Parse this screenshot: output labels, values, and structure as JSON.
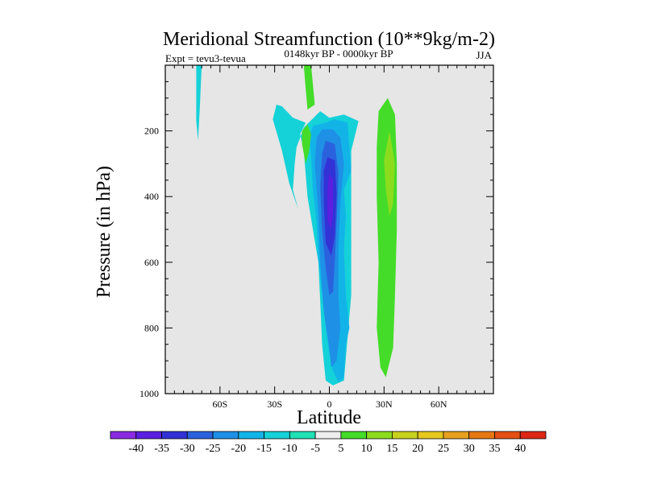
{
  "colors": {
    "background": "#e6e6e6",
    "axis": "#000000"
  },
  "chart_data": {
    "type": "contour",
    "title": "Meridional Streamfunction (10**9kg/m-2)",
    "subtitle": "0148kyr BP - 0000kyr BP",
    "left_label": "Expt = tevu3-tevua",
    "right_label": "JJA",
    "xlabel": "Latitude",
    "ylabel": "Pressure (in hPa)",
    "xlim": [
      -90,
      90
    ],
    "ylim": [
      1000,
      0
    ],
    "xticks": [
      {
        "value": -60,
        "label": "60S"
      },
      {
        "value": -30,
        "label": "30S"
      },
      {
        "value": 0,
        "label": "0"
      },
      {
        "value": 30,
        "label": "30N"
      },
      {
        "value": 60,
        "label": "60N"
      }
    ],
    "yticks": [
      {
        "value": 200,
        "label": "200"
      },
      {
        "value": 400,
        "label": "400"
      },
      {
        "value": 600,
        "label": "600"
      },
      {
        "value": 800,
        "label": "800"
      },
      {
        "value": 1000,
        "label": "1000"
      }
    ],
    "colorbar": {
      "labels": [
        "-40",
        "-35",
        "-30",
        "-25",
        "-20",
        "-15",
        "-10",
        "-5",
        "5",
        "10",
        "15",
        "20",
        "25",
        "30",
        "35",
        "40"
      ],
      "colors": [
        "#8a2be2",
        "#5a1fe0",
        "#3232d6",
        "#2a62de",
        "#1e90e6",
        "#12b4e8",
        "#14d2d8",
        "#20e0b4",
        "#eeeeee",
        "#44dc28",
        "#8cdc1e",
        "#c8d21e",
        "#e6c81e",
        "#e6a01e",
        "#e67814",
        "#e65014",
        "#dc2814"
      ]
    },
    "regions": [
      {
        "name": "-10 band (tropical south cell)",
        "level": "-10",
        "color": "#14d2d8",
        "points": [
          [
            -29,
            120
          ],
          [
            -26,
            125
          ],
          [
            -20,
            160
          ],
          [
            -13,
            175
          ],
          [
            -16,
            210
          ],
          [
            -14,
            260
          ],
          [
            -12,
            400
          ],
          [
            -9,
            500
          ],
          [
            -6,
            600
          ],
          [
            -5,
            720
          ],
          [
            -4,
            850
          ],
          [
            -2,
            960
          ],
          [
            2,
            975
          ],
          [
            8,
            960
          ],
          [
            12,
            700
          ],
          [
            12,
            260
          ],
          [
            16,
            170
          ],
          [
            8,
            150
          ],
          [
            0,
            160
          ],
          [
            -5,
            140
          ],
          [
            -14,
            190
          ],
          [
            -18,
            250
          ],
          [
            -19,
            300
          ],
          [
            -20,
            380
          ],
          [
            -17,
            440
          ],
          [
            -22,
            360
          ],
          [
            -26,
            260
          ],
          [
            -31,
            165
          ]
        ]
      },
      {
        "name": "-10 band high latitude",
        "level": "-10",
        "color": "#14d2d8",
        "points": [
          [
            -73,
            0
          ],
          [
            -70,
            0
          ],
          [
            -71,
            120
          ],
          [
            -72,
            230
          ],
          [
            -73,
            170
          ]
        ]
      },
      {
        "name": "-15 contour",
        "level": "-15",
        "color": "#12b4e8",
        "points": [
          [
            -9,
            185
          ],
          [
            -2,
            175
          ],
          [
            3,
            165
          ],
          [
            10,
            175
          ],
          [
            12,
            320
          ],
          [
            8,
            380
          ],
          [
            9,
            460
          ],
          [
            8,
            560
          ],
          [
            9,
            700
          ],
          [
            11,
            800
          ],
          [
            9,
            850
          ],
          [
            8,
            950
          ],
          [
            5,
            965
          ],
          [
            2,
            930
          ],
          [
            0,
            880
          ],
          [
            -2,
            800
          ],
          [
            -4,
            700
          ],
          [
            -6,
            590
          ],
          [
            -7,
            480
          ],
          [
            -9,
            380
          ],
          [
            -10,
            280
          ],
          [
            -11,
            215
          ]
        ]
      },
      {
        "name": "-20 contour",
        "level": "-20",
        "color": "#1e90e6",
        "points": [
          [
            -4,
            195
          ],
          [
            2,
            195
          ],
          [
            6,
            220
          ],
          [
            8,
            300
          ],
          [
            6,
            420
          ],
          [
            5,
            560
          ],
          [
            5,
            700
          ],
          [
            6,
            800
          ],
          [
            4,
            900
          ],
          [
            1,
            920
          ],
          [
            0,
            860
          ],
          [
            -3,
            750
          ],
          [
            -5,
            600
          ],
          [
            -6,
            450
          ],
          [
            -8,
            300
          ],
          [
            -7,
            220
          ]
        ]
      },
      {
        "name": "-25 contour",
        "level": "-25",
        "color": "#2a62de",
        "points": [
          [
            -2,
            230
          ],
          [
            3,
            240
          ],
          [
            5,
            330
          ],
          [
            4,
            480
          ],
          [
            3,
            600
          ],
          [
            2,
            690
          ],
          [
            0,
            700
          ],
          [
            -2,
            620
          ],
          [
            -4,
            500
          ],
          [
            -5,
            370
          ],
          [
            -4,
            270
          ]
        ]
      },
      {
        "name": "-30 contour",
        "level": "-30",
        "color": "#3232d6",
        "points": [
          [
            -1,
            280
          ],
          [
            3,
            290
          ],
          [
            4,
            390
          ],
          [
            3,
            520
          ],
          [
            1,
            580
          ],
          [
            -2,
            540
          ],
          [
            -3,
            420
          ],
          [
            -3,
            320
          ]
        ]
      },
      {
        "name": "-35 contour",
        "level": "-35",
        "color": "#5a1fe0",
        "points": [
          [
            0,
            330
          ],
          [
            2,
            350
          ],
          [
            2,
            450
          ],
          [
            1,
            500
          ],
          [
            -1,
            470
          ],
          [
            -1,
            380
          ]
        ]
      },
      {
        "name": "10 contour (northern positive)",
        "level": "10",
        "color": "#44dc28",
        "points": [
          [
            27,
            140
          ],
          [
            32,
            100
          ],
          [
            36,
            150
          ],
          [
            37,
            300
          ],
          [
            37,
            500
          ],
          [
            36,
            700
          ],
          [
            35,
            860
          ],
          [
            31,
            950
          ],
          [
            28,
            920
          ],
          [
            26,
            800
          ],
          [
            27,
            600
          ],
          [
            26,
            400
          ],
          [
            26,
            250
          ]
        ]
      },
      {
        "name": "15 contour (northern positive)",
        "level": "15",
        "color": "#8cdc1e",
        "points": [
          [
            30,
            290
          ],
          [
            33,
            200
          ],
          [
            36,
            300
          ],
          [
            35,
            420
          ],
          [
            33,
            460
          ],
          [
            31,
            380
          ]
        ]
      },
      {
        "name": "10 contour upper",
        "level": "10",
        "color": "#44dc28",
        "points": [
          [
            -14,
            0
          ],
          [
            -10,
            0
          ],
          [
            -8,
            120
          ],
          [
            -12,
            135
          ],
          [
            -13,
            70
          ]
        ]
      },
      {
        "name": "10 contour middle",
        "level": "10",
        "color": "#44dc28",
        "points": [
          [
            -15,
            200
          ],
          [
            -12,
            180
          ],
          [
            -10,
            210
          ],
          [
            -11,
            260
          ],
          [
            -13,
            300
          ],
          [
            -15,
            240
          ]
        ]
      }
    ]
  }
}
